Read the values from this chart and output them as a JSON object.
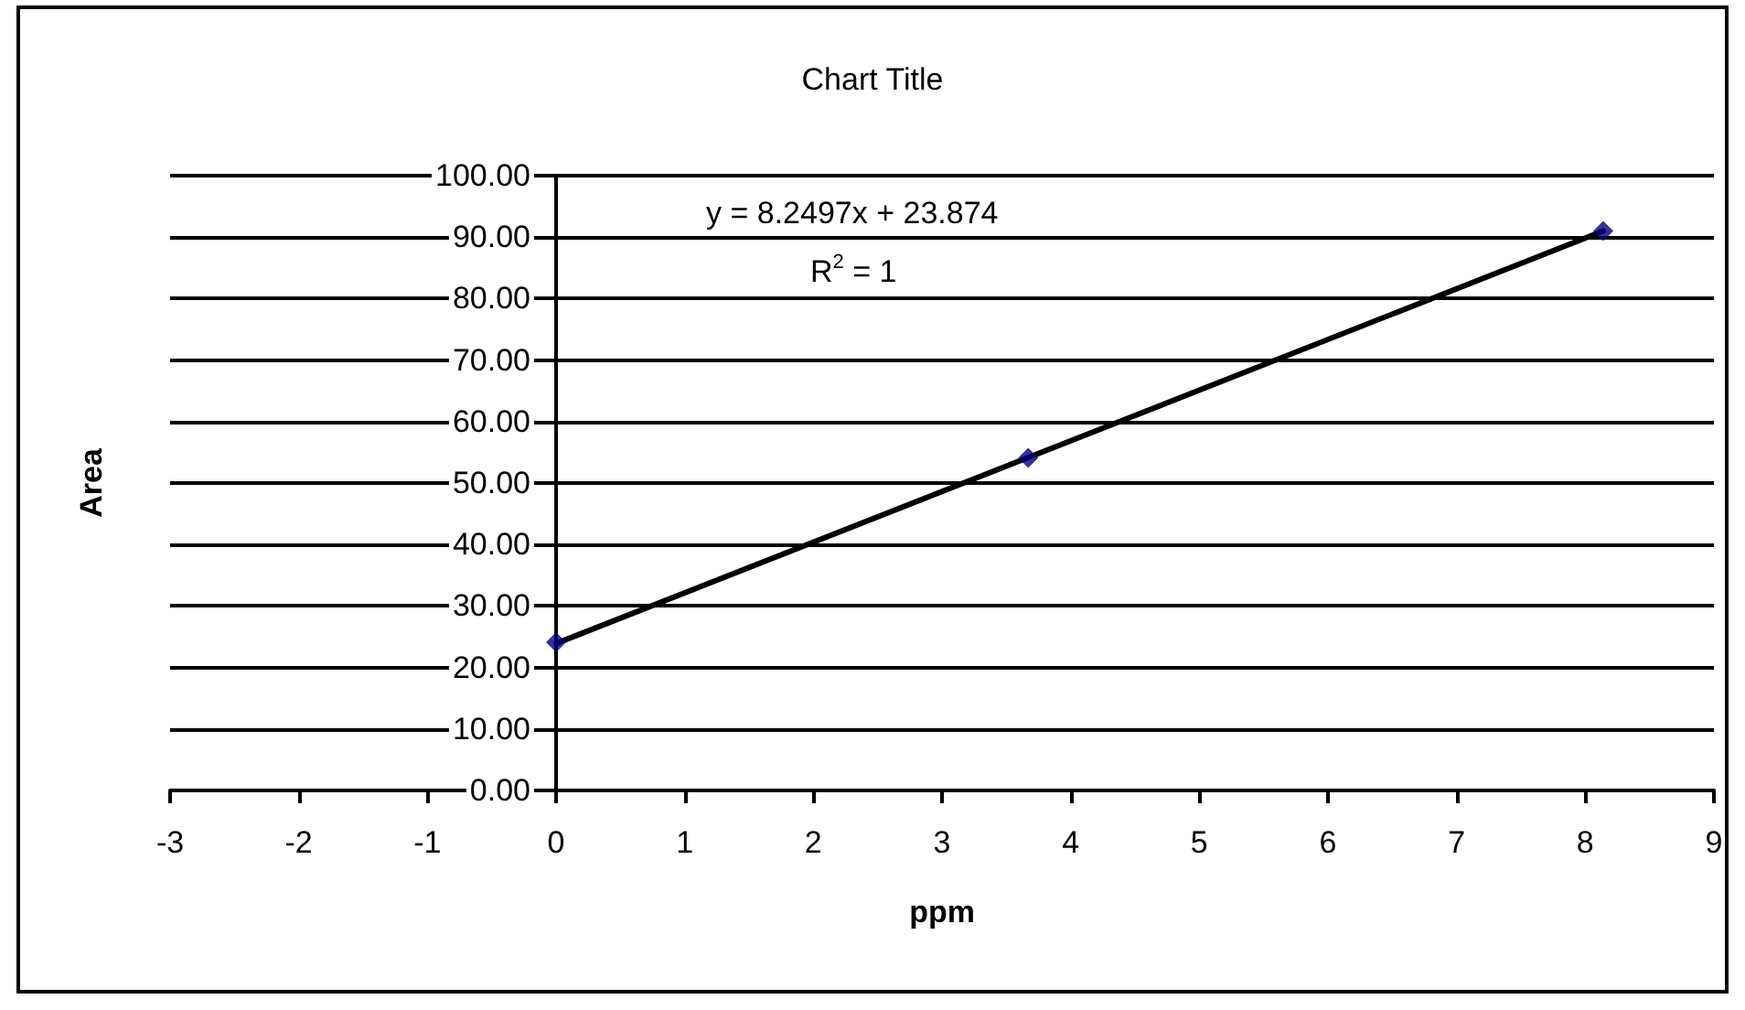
{
  "chart_data": {
    "type": "scatter",
    "title": "Chart Title",
    "xlabel": "ppm",
    "ylabel": "Area",
    "series": [
      {
        "color": "#000080",
        "x": [
          0,
          3.67,
          8.14
        ],
        "values": [
          24.1,
          54.1,
          91.0
        ],
        "marker": "diamond"
      },
      {
        "type": "line",
        "color": "#000000",
        "x": [
          0,
          8.14
        ],
        "values": [
          23.9,
          91.0
        ],
        "marker": "none",
        "line_style": "solid"
      }
    ],
    "xlim": [
      -3,
      9
    ],
    "xticks": [
      -3,
      -2,
      -1,
      0,
      1,
      2,
      3,
      4,
      5,
      6,
      7,
      8,
      9
    ],
    "ylim": [
      0,
      100
    ],
    "yticks": [
      {
        "value": 0,
        "label": "0.00"
      },
      {
        "value": 10,
        "label": "10.00"
      },
      {
        "value": 20,
        "label": "20.00"
      },
      {
        "value": 30,
        "label": "30.00"
      },
      {
        "value": 40,
        "label": "40.00"
      },
      {
        "value": 50,
        "label": "50.00"
      },
      {
        "value": 60,
        "label": "60.00"
      },
      {
        "value": 70,
        "label": "70.00"
      },
      {
        "value": 80,
        "label": "80.00"
      },
      {
        "value": 90,
        "label": "90.00"
      },
      {
        "value": 100,
        "label": "100.00"
      }
    ],
    "grid": "y",
    "annotations": [
      "y = 8.2497x + 23.874",
      "R$^{2}$ = 1"
    ]
  }
}
